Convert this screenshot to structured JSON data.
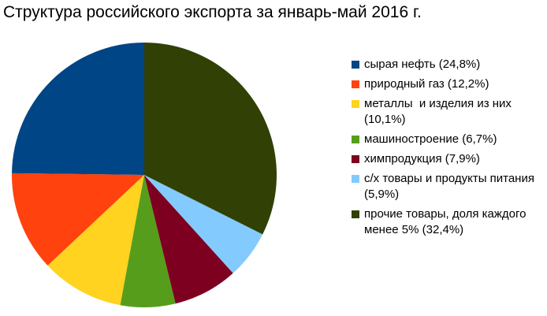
{
  "chart_data": {
    "type": "pie",
    "title": "Структура российского экспорта за январь-май 2016 г.",
    "categories": [
      "сырая нефть (24,8%)",
      "природный газ (12,2%)",
      "металлы  и изделия из них (10,1%)",
      "машиностроение (6,7%)",
      "химпродукция (7,9%)",
      "с/х товары и продукты питания (5,9%)",
      "прочие товары, доля каждого менее 5% (32,4%)"
    ],
    "values": [
      24.8,
      12.2,
      10.1,
      6.7,
      7.9,
      5.9,
      32.4
    ],
    "colors": [
      "#004586",
      "#ff420e",
      "#ffd320",
      "#579d1c",
      "#7e0021",
      "#83caff",
      "#314004"
    ],
    "direction": "counterclockwise"
  }
}
